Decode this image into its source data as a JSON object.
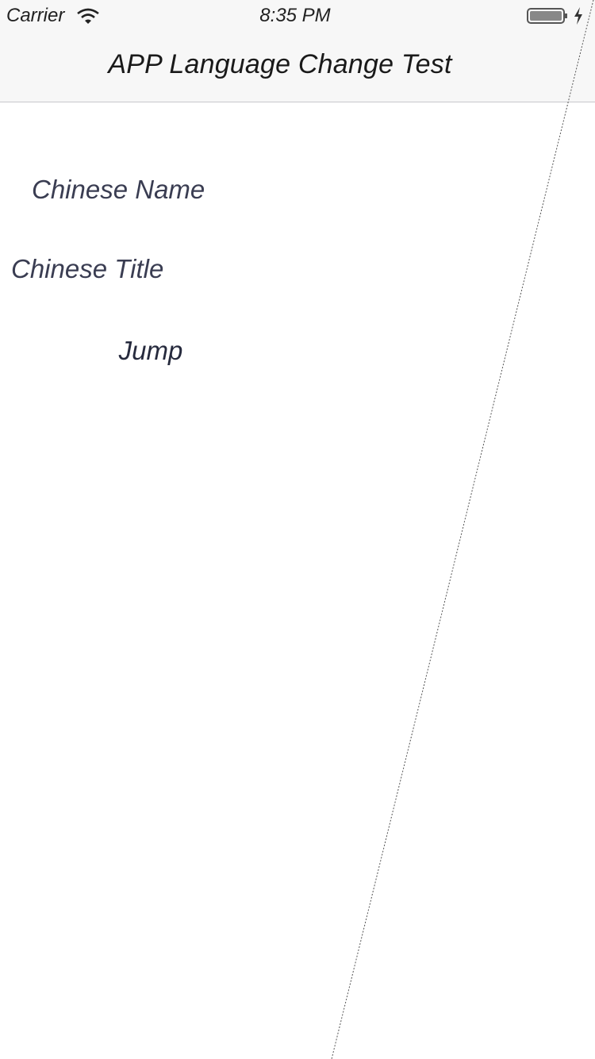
{
  "status_bar": {
    "carrier": "Carrier",
    "time": "8:35 PM",
    "icons": [
      "wifi-icon",
      "battery-icon",
      "charging-bolt-icon"
    ]
  },
  "nav": {
    "title": "APP Language Change Test"
  },
  "content": {
    "name_label": "Chinese Name",
    "title_label": "Chinese Title",
    "jump_button": "Jump"
  },
  "colors": {
    "bar_background": "#f7f7f7",
    "separator": "#c8c8cc",
    "label_text": "#3a3d52",
    "page_background": "#ffffff"
  }
}
